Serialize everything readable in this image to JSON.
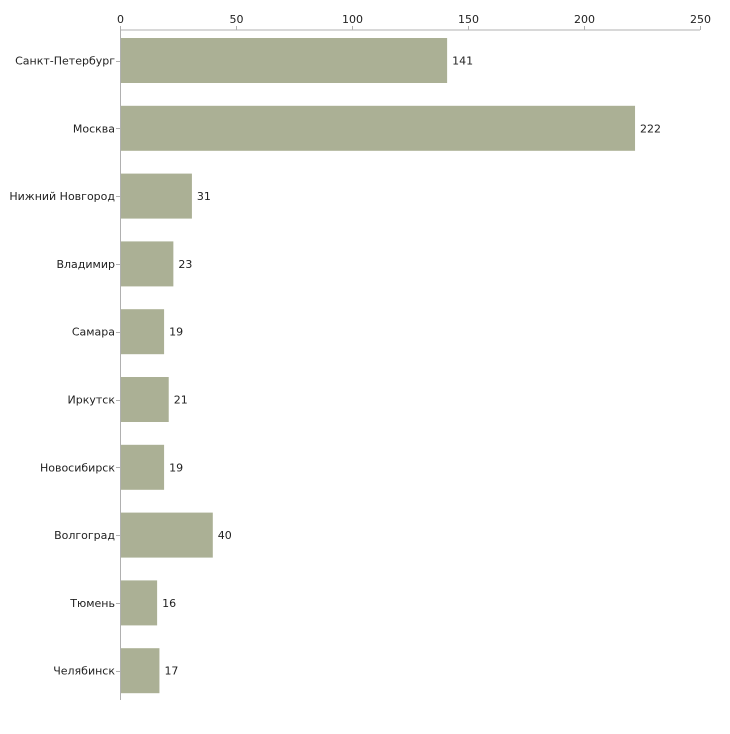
{
  "chart_data": {
    "type": "bar",
    "orientation": "horizontal",
    "categories": [
      "Санкт-Петербург",
      "Москва",
      "Нижний Новгород",
      "Владимир",
      "Самара",
      "Иркутск",
      "Новосибирск",
      "Волгоград",
      "Тюмень",
      "Челябинск"
    ],
    "values": [
      141,
      222,
      31,
      23,
      19,
      21,
      19,
      40,
      16,
      17
    ],
    "data_labels": [
      "141",
      "222",
      "31",
      "23",
      "19",
      "21",
      "19",
      "40",
      "16",
      "17"
    ],
    "xlim": [
      0,
      250
    ],
    "x_ticks": [
      0,
      50,
      100,
      150,
      200,
      250
    ],
    "x_tick_labels": [
      "0",
      "50",
      "100",
      "150",
      "200",
      "250"
    ],
    "title": "",
    "xlabel": "",
    "ylabel": "",
    "grid": false,
    "bar_color": "#abb095",
    "axis_color": "#b0b0b0"
  }
}
